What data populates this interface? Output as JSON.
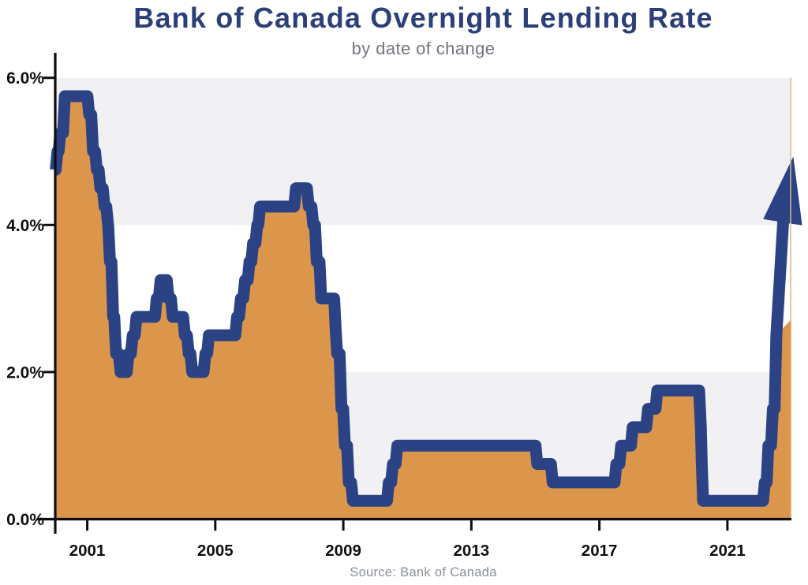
{
  "chart_data": {
    "type": "area",
    "title": "Bank of Canada Overnight Lending Rate",
    "subtitle": "by date of change",
    "source_note": "Source: Bank of Canada",
    "x_axis": {
      "range": [
        2000,
        2023
      ],
      "ticks": [
        {
          "label": "2001",
          "year": 2001
        },
        {
          "label": "2005",
          "year": 2005
        },
        {
          "label": "2009",
          "year": 2009
        },
        {
          "label": "2013",
          "year": 2013
        },
        {
          "label": "2017",
          "year": 2017
        },
        {
          "label": "2021",
          "year": 2021
        }
      ]
    },
    "y_axis": {
      "range": [
        0,
        6
      ],
      "unit": "percent",
      "ticks": [
        {
          "label": "0.0%",
          "value": 0
        },
        {
          "label": "2.0%",
          "value": 2
        },
        {
          "label": "4.0%",
          "value": 4
        },
        {
          "label": "6.0%",
          "value": 6
        }
      ]
    },
    "background_bands": [
      {
        "from": 0,
        "to": 2
      },
      {
        "from": 4,
        "to": 6
      }
    ],
    "series": {
      "name": "overnight-lending-rate-percent",
      "start": [
        2000.0,
        4.75
      ],
      "changes": [
        [
          2000.07,
          5.0
        ],
        [
          2000.16,
          5.25
        ],
        [
          2000.3,
          5.75
        ],
        [
          2001.06,
          5.5
        ],
        [
          2001.18,
          5.0
        ],
        [
          2001.3,
          4.75
        ],
        [
          2001.41,
          4.5
        ],
        [
          2001.54,
          4.25
        ],
        [
          2001.65,
          4.0
        ],
        [
          2001.71,
          3.5
        ],
        [
          2001.81,
          2.75
        ],
        [
          2001.9,
          2.25
        ],
        [
          2002.04,
          2.0
        ],
        [
          2002.29,
          2.25
        ],
        [
          2002.42,
          2.5
        ],
        [
          2002.54,
          2.75
        ],
        [
          2003.17,
          3.0
        ],
        [
          2003.29,
          3.25
        ],
        [
          2003.54,
          3.0
        ],
        [
          2003.67,
          2.75
        ],
        [
          2004.05,
          2.5
        ],
        [
          2004.17,
          2.25
        ],
        [
          2004.28,
          2.0
        ],
        [
          2004.69,
          2.25
        ],
        [
          2004.8,
          2.5
        ],
        [
          2005.68,
          2.75
        ],
        [
          2005.8,
          3.0
        ],
        [
          2005.93,
          3.25
        ],
        [
          2006.07,
          3.5
        ],
        [
          2006.18,
          3.75
        ],
        [
          2006.31,
          4.0
        ],
        [
          2006.4,
          4.25
        ],
        [
          2007.52,
          4.5
        ],
        [
          2007.92,
          4.25
        ],
        [
          2008.06,
          4.0
        ],
        [
          2008.17,
          3.5
        ],
        [
          2008.31,
          3.0
        ],
        [
          2008.77,
          2.5
        ],
        [
          2008.81,
          2.25
        ],
        [
          2008.94,
          1.5
        ],
        [
          2009.05,
          1.0
        ],
        [
          2009.17,
          0.5
        ],
        [
          2009.3,
          0.25
        ],
        [
          2010.42,
          0.5
        ],
        [
          2010.55,
          0.75
        ],
        [
          2010.69,
          1.0
        ],
        [
          2015.06,
          0.75
        ],
        [
          2015.54,
          0.5
        ],
        [
          2017.53,
          0.75
        ],
        [
          2017.68,
          1.0
        ],
        [
          2018.04,
          1.25
        ],
        [
          2018.52,
          1.5
        ],
        [
          2018.81,
          1.75
        ],
        [
          2020.17,
          1.25
        ],
        [
          2020.2,
          0.75
        ],
        [
          2020.24,
          0.25
        ],
        [
          2022.17,
          0.5
        ],
        [
          2022.28,
          1.0
        ],
        [
          2022.42,
          1.5
        ],
        [
          2022.53,
          2.5
        ]
      ],
      "area_end": [
        2023.0,
        2.72
      ]
    },
    "annotation_arrow": {
      "meaning": "rates rising",
      "from": [
        2022.53,
        2.5
      ],
      "bend": [
        2022.75,
        4.1
      ],
      "tip": [
        2023.06,
        4.93
      ]
    },
    "colors": {
      "area": "#DC964B",
      "line": "#2B4385",
      "band": "#F1F1F4",
      "axis": "#0D0D0D",
      "tick_label": "#101010",
      "title": "#2C3F78",
      "subtitle": "#74757E",
      "source": "#8A8F99",
      "plot_edge": "#D9B68C"
    }
  }
}
